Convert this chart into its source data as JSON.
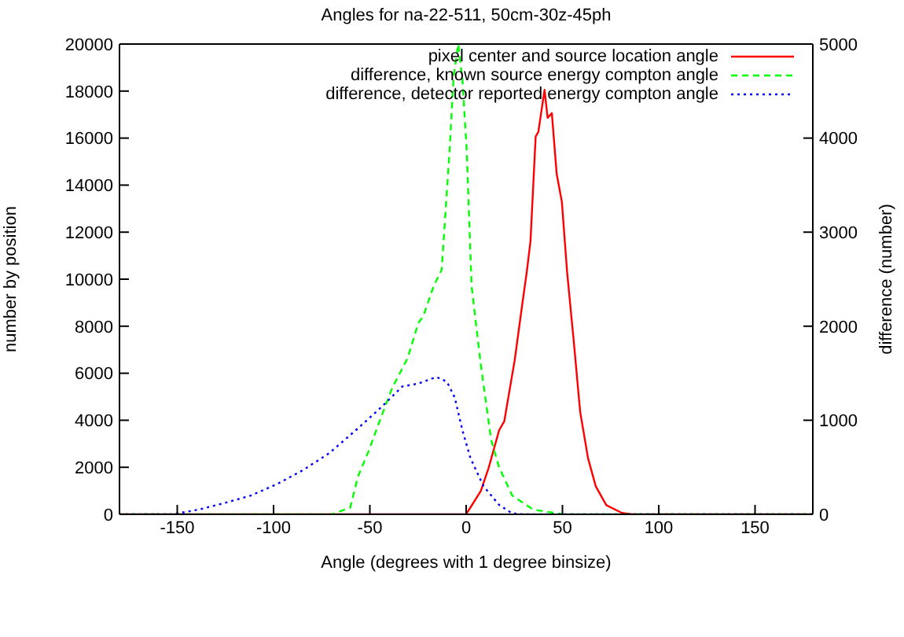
{
  "chart_data": {
    "type": "line",
    "title": "Angles for na-22-511, 50cm-30z-45ph",
    "xlabel": "Angle (degrees with 1 degree binsize)",
    "ylabel": "number by position",
    "y2label": "difference (number)",
    "xlim": [
      -180,
      180
    ],
    "xticks": [
      -150,
      -100,
      -50,
      0,
      50,
      100,
      150
    ],
    "ylim": [
      0,
      20000
    ],
    "yticks": [
      0,
      2000,
      4000,
      6000,
      8000,
      10000,
      12000,
      14000,
      16000,
      18000,
      20000
    ],
    "y2lim": [
      0,
      5000
    ],
    "y2ticks": [
      0,
      1000,
      2000,
      3000,
      4000,
      5000
    ],
    "legend": "top right",
    "marker": "none",
    "series": [
      {
        "name": "pixel center and source location angle",
        "color": "#ff0000",
        "line_style": "solid",
        "x": [
          -180,
          0,
          7.6,
          11.7,
          17.1,
          19.8,
          25.2,
          28.8,
          31.5,
          33.4,
          36.1,
          37.5,
          40.7,
          42.3,
          44.5,
          47,
          49.7,
          52.4,
          55.9,
          59.2,
          63.3,
          67.3,
          72.8,
          80.9,
          86.3,
          180
        ],
        "values": [
          0,
          0,
          990,
          1980,
          3570,
          3960,
          6550,
          8730,
          10320,
          11610,
          16070,
          16270,
          18050,
          16860,
          17060,
          14480,
          13290,
          10320,
          7340,
          4360,
          2380,
          1190,
          390,
          60,
          0,
          0
        ]
      },
      {
        "name": "difference, known source energy compton angle",
        "color": "#00ff00",
        "line_style": "dashed",
        "axis": "y2",
        "x": [
          -180,
          -69.7,
          -60.2,
          -56.2,
          -50.7,
          -45.3,
          -38.5,
          -30.4,
          -24.9,
          -22.2,
          -16.8,
          -12.7,
          -8.6,
          -6.5,
          -4.1,
          -1.9,
          0.3,
          2.8,
          7.6,
          13,
          17.1,
          23.9,
          34.8,
          50.5,
          180
        ],
        "values": [
          0,
          0,
          70,
          400,
          670,
          970,
          1340,
          1660,
          2030,
          2110,
          2430,
          2600,
          3870,
          4660,
          5000,
          4610,
          3870,
          2430,
          1590,
          790,
          500,
          200,
          50,
          0,
          0
        ]
      },
      {
        "name": "difference, detector reported energy compton angle",
        "color": "#0000ff",
        "line_style": "dotted",
        "axis": "y2",
        "x": [
          -180,
          -152.5,
          -138.9,
          -125.4,
          -111.8,
          -98.3,
          -84.7,
          -71.1,
          -57.5,
          -44,
          -33.1,
          -24.9,
          -15.5,
          -10,
          -5.9,
          -1.9,
          2.2,
          9,
          17.1,
          23.9,
          29.3,
          180
        ],
        "values": [
          0,
          0,
          50,
          120,
          200,
          320,
          470,
          650,
          890,
          1140,
          1360,
          1390,
          1460,
          1410,
          1240,
          890,
          600,
          300,
          100,
          10,
          0,
          0
        ]
      }
    ]
  }
}
